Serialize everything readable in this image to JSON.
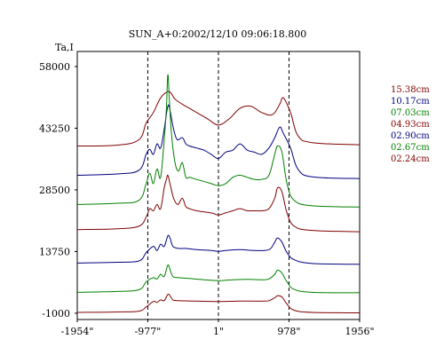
{
  "chart_data": {
    "type": "line",
    "title": "SUN_A+0:2002/12/10 09:06:18.800",
    "ylabel": "Ta,I",
    "xlabel": "",
    "x_ticks": [
      "-1954\"",
      "-977\"",
      "1\"",
      "978\"",
      "1956\""
    ],
    "x_tick_values": [
      -1954,
      -977,
      1,
      978,
      1956
    ],
    "y_ticks": [
      "58000",
      "43250",
      "28500",
      "13750",
      "-1000"
    ],
    "y_tick_values": [
      58000,
      43250,
      28500,
      13750,
      -1000
    ],
    "ylim": [
      -2500,
      61600
    ],
    "xlim": [
      -1954,
      1956
    ],
    "dashed_lines_x": [
      -977,
      1,
      978
    ],
    "grid": false,
    "legend_position": "right",
    "series": [
      {
        "name": "15.38cm",
        "color": "#800000",
        "baseline": 39000,
        "peak_scale": 1.0,
        "points": [
          [
            -1954,
            39000
          ],
          [
            -1400,
            39200
          ],
          [
            -1100,
            40500
          ],
          [
            -1000,
            44500
          ],
          [
            -900,
            47000
          ],
          [
            -800,
            50500
          ],
          [
            -700,
            52000
          ],
          [
            -650,
            51500
          ],
          [
            -600,
            50200
          ],
          [
            -500,
            49000
          ],
          [
            -400,
            48000
          ],
          [
            -300,
            47000
          ],
          [
            -150,
            45500
          ],
          [
            0,
            44000
          ],
          [
            150,
            45500
          ],
          [
            300,
            48000
          ],
          [
            450,
            48500
          ],
          [
            600,
            47000
          ],
          [
            750,
            46500
          ],
          [
            850,
            49000
          ],
          [
            900,
            50500
          ],
          [
            1000,
            47000
          ],
          [
            1100,
            41500
          ],
          [
            1300,
            39800
          ],
          [
            1956,
            39300
          ]
        ]
      },
      {
        "name": "10.17cm",
        "color": "#000080",
        "baseline": 32000,
        "peak_scale": 1.0,
        "points": [
          [
            -1954,
            32000
          ],
          [
            -1400,
            32300
          ],
          [
            -1100,
            33200
          ],
          [
            -1000,
            37000
          ],
          [
            -950,
            38200
          ],
          [
            -900,
            37000
          ],
          [
            -850,
            39500
          ],
          [
            -800,
            38500
          ],
          [
            -750,
            43000
          ],
          [
            -700,
            48500
          ],
          [
            -670,
            47500
          ],
          [
            -620,
            43000
          ],
          [
            -570,
            40500
          ],
          [
            -500,
            41000
          ],
          [
            -450,
            39500
          ],
          [
            -400,
            39000
          ],
          [
            -300,
            38500
          ],
          [
            -200,
            38000
          ],
          [
            -100,
            37000
          ],
          [
            0,
            36000
          ],
          [
            100,
            37500
          ],
          [
            200,
            38000
          ],
          [
            300,
            39500
          ],
          [
            400,
            38000
          ],
          [
            500,
            37500
          ],
          [
            600,
            37000
          ],
          [
            700,
            38500
          ],
          [
            780,
            41000
          ],
          [
            850,
            43500
          ],
          [
            900,
            42000
          ],
          [
            1000,
            38500
          ],
          [
            1100,
            33500
          ],
          [
            1300,
            31600
          ],
          [
            1956,
            31200
          ]
        ]
      },
      {
        "name": "07.03cm",
        "color": "#008000",
        "baseline": 25000,
        "peak_scale": 1.0,
        "points": [
          [
            -1954,
            25000
          ],
          [
            -1400,
            25300
          ],
          [
            -1100,
            26000
          ],
          [
            -1000,
            30000
          ],
          [
            -950,
            32500
          ],
          [
            -900,
            30000
          ],
          [
            -850,
            33500
          ],
          [
            -800,
            31500
          ],
          [
            -750,
            40500
          ],
          [
            -720,
            48000
          ],
          [
            -700,
            56000
          ],
          [
            -680,
            50500
          ],
          [
            -650,
            42000
          ],
          [
            -600,
            35000
          ],
          [
            -550,
            33000
          ],
          [
            -500,
            35000
          ],
          [
            -450,
            31500
          ],
          [
            -400,
            31500
          ],
          [
            -300,
            31000
          ],
          [
            -100,
            30000
          ],
          [
            0,
            29500
          ],
          [
            100,
            30000
          ],
          [
            200,
            31500
          ],
          [
            300,
            32000
          ],
          [
            400,
            31500
          ],
          [
            500,
            31000
          ],
          [
            600,
            31000
          ],
          [
            700,
            32000
          ],
          [
            780,
            37000
          ],
          [
            820,
            39000
          ],
          [
            880,
            37500
          ],
          [
            950,
            30000
          ],
          [
            1050,
            26000
          ],
          [
            1300,
            24700
          ],
          [
            1956,
            24400
          ]
        ]
      },
      {
        "name": "04.93cm",
        "color": "#800000",
        "baseline": 19000,
        "peak_scale": 1.0,
        "points": [
          [
            -1954,
            19000
          ],
          [
            -1400,
            19200
          ],
          [
            -1100,
            19800
          ],
          [
            -1000,
            22000
          ],
          [
            -950,
            24000
          ],
          [
            -900,
            23500
          ],
          [
            -850,
            25000
          ],
          [
            -800,
            24000
          ],
          [
            -750,
            29000
          ],
          [
            -720,
            31000
          ],
          [
            -700,
            32000
          ],
          [
            -670,
            30000
          ],
          [
            -620,
            26500
          ],
          [
            -560,
            25000
          ],
          [
            -500,
            26500
          ],
          [
            -450,
            24500
          ],
          [
            -400,
            24000
          ],
          [
            -300,
            23500
          ],
          [
            -100,
            23000
          ],
          [
            0,
            22500
          ],
          [
            100,
            23000
          ],
          [
            200,
            23500
          ],
          [
            300,
            24000
          ],
          [
            400,
            23500
          ],
          [
            500,
            23500
          ],
          [
            600,
            23500
          ],
          [
            700,
            24000
          ],
          [
            780,
            26500
          ],
          [
            820,
            29000
          ],
          [
            880,
            28000
          ],
          [
            950,
            23000
          ],
          [
            1050,
            19800
          ],
          [
            1300,
            18800
          ],
          [
            1956,
            18500
          ]
        ]
      },
      {
        "name": "02.90cm",
        "color": "#000080",
        "baseline": 11000,
        "peak_scale": 1.0,
        "points": [
          [
            -1954,
            11000
          ],
          [
            -1400,
            11200
          ],
          [
            -1100,
            11500
          ],
          [
            -1000,
            13500
          ],
          [
            -900,
            15000
          ],
          [
            -850,
            14000
          ],
          [
            -800,
            15500
          ],
          [
            -750,
            15000
          ],
          [
            -700,
            17500
          ],
          [
            -670,
            17000
          ],
          [
            -630,
            15000
          ],
          [
            -550,
            14500
          ],
          [
            -450,
            14500
          ],
          [
            -300,
            14200
          ],
          [
            -100,
            14000
          ],
          [
            0,
            13800
          ],
          [
            100,
            14000
          ],
          [
            300,
            14200
          ],
          [
            500,
            14000
          ],
          [
            700,
            14200
          ],
          [
            780,
            16000
          ],
          [
            820,
            17000
          ],
          [
            880,
            16000
          ],
          [
            950,
            13500
          ],
          [
            1050,
            11800
          ],
          [
            1300,
            10900
          ],
          [
            1956,
            10700
          ]
        ]
      },
      {
        "name": "02.67cm",
        "color": "#008000",
        "baseline": 4000,
        "peak_scale": 1.0,
        "points": [
          [
            -1954,
            4000
          ],
          [
            -1400,
            4200
          ],
          [
            -1100,
            4600
          ],
          [
            -1000,
            6500
          ],
          [
            -900,
            7500
          ],
          [
            -850,
            7200
          ],
          [
            -800,
            8300
          ],
          [
            -750,
            7800
          ],
          [
            -700,
            10500
          ],
          [
            -670,
            9500
          ],
          [
            -630,
            7800
          ],
          [
            -550,
            7500
          ],
          [
            -400,
            7300
          ],
          [
            -200,
            7000
          ],
          [
            0,
            6800
          ],
          [
            200,
            7000
          ],
          [
            400,
            7100
          ],
          [
            600,
            7000
          ],
          [
            700,
            7200
          ],
          [
            780,
            8300
          ],
          [
            820,
            9300
          ],
          [
            880,
            8600
          ],
          [
            950,
            6500
          ],
          [
            1050,
            4700
          ],
          [
            1300,
            4000
          ],
          [
            1956,
            3900
          ]
        ]
      },
      {
        "name": "02.24cm",
        "color": "#800000",
        "baseline": -800,
        "peak_scale": 1.0,
        "points": [
          [
            -1954,
            -800
          ],
          [
            -1400,
            -700
          ],
          [
            -1100,
            -500
          ],
          [
            -1000,
            500
          ],
          [
            -900,
            1800
          ],
          [
            -850,
            1600
          ],
          [
            -800,
            2200
          ],
          [
            -750,
            2000
          ],
          [
            -700,
            3500
          ],
          [
            -670,
            3200
          ],
          [
            -630,
            2200
          ],
          [
            -550,
            2000
          ],
          [
            -300,
            1900
          ],
          [
            0,
            1800
          ],
          [
            300,
            1900
          ],
          [
            600,
            1900
          ],
          [
            700,
            2000
          ],
          [
            780,
            2700
          ],
          [
            820,
            3200
          ],
          [
            880,
            2900
          ],
          [
            950,
            1200
          ],
          [
            1050,
            -300
          ],
          [
            1300,
            -800
          ],
          [
            1956,
            -900
          ]
        ]
      }
    ]
  }
}
